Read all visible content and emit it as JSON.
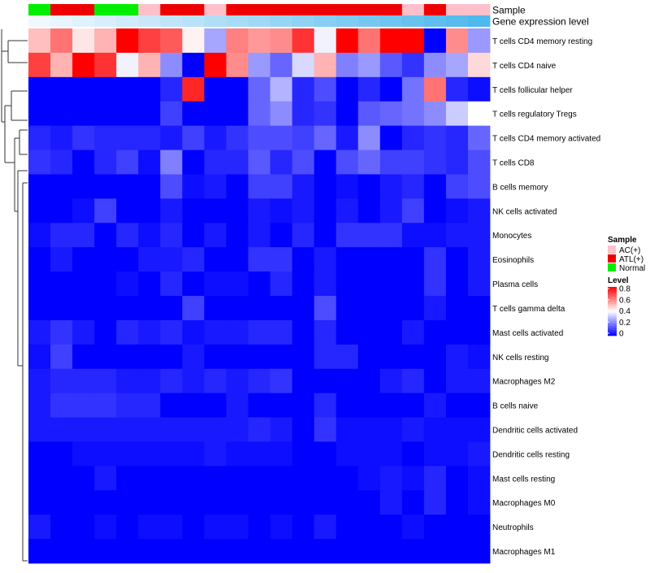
{
  "chart_data": {
    "type": "heatmap",
    "annotation_tracks": [
      {
        "name": "Sample",
        "values": [
          "Normal",
          "ATL(+)",
          "ATL(+)",
          "Normal",
          "Normal",
          "AC(+)",
          "ATL(+)",
          "ATL(+)",
          "AC(+)",
          "ATL(+)",
          "ATL(+)",
          "ATL(+)",
          "ATL(+)",
          "ATL(+)",
          "ATL(+)",
          "ATL(+)",
          "ATL(+)",
          "AC(+)",
          "ATL(+)",
          "AC(+)",
          "AC(+)"
        ]
      },
      {
        "name": "Gene expression level",
        "values": [
          0.0,
          0.05,
          0.1,
          0.15,
          0.2,
          0.25,
          0.3,
          0.35,
          0.4,
          0.45,
          0.5,
          0.55,
          0.6,
          0.65,
          0.7,
          0.75,
          0.8,
          0.85,
          0.9,
          0.95,
          1.0
        ]
      }
    ],
    "rows": [
      "T cells CD4 memory resting",
      "T cells CD4 naive",
      "T cells follicular helper",
      "T cells regulatory  Tregs",
      "T cells CD4 memory activated",
      "T cells CD8",
      "B cells memory",
      "NK cells activated",
      "Monocytes",
      "Eosinophils",
      "Plasma cells",
      "T cells gamma delta",
      "Mast cells activated",
      "NK cells resting",
      "Macrophages M2",
      "B cells naive",
      "Dendritic cells activated",
      "Dendritic cells resting",
      "Mast cells resting",
      "Macrophages M0",
      "Neutrophils",
      "Macrophages M1"
    ],
    "values": [
      [
        0.5,
        0.62,
        0.44,
        0.52,
        0.8,
        0.7,
        0.66,
        0.42,
        0.26,
        0.6,
        0.56,
        0.58,
        0.72,
        0.38,
        0.8,
        0.62,
        0.8,
        0.8,
        0.0,
        0.58,
        0.24
      ],
      [
        0.7,
        0.52,
        0.8,
        0.72,
        0.38,
        0.52,
        0.22,
        0.0,
        0.8,
        0.58,
        0.24,
        0.16,
        0.34,
        0.52,
        0.2,
        0.24,
        0.14,
        0.08,
        0.22,
        0.26,
        0.46
      ],
      [
        0.0,
        0.0,
        0.0,
        0.0,
        0.0,
        0.0,
        0.06,
        0.74,
        0.0,
        0.0,
        0.16,
        0.28,
        0.06,
        0.12,
        0.0,
        0.06,
        0.0,
        0.18,
        0.62,
        0.06,
        0.02
      ],
      [
        0.0,
        0.0,
        0.0,
        0.0,
        0.0,
        0.0,
        0.1,
        0.0,
        0.0,
        0.0,
        0.16,
        0.22,
        0.06,
        0.08,
        0.0,
        0.14,
        0.16,
        0.18,
        0.22,
        0.32,
        0.4
      ],
      [
        0.06,
        0.04,
        0.08,
        0.06,
        0.06,
        0.06,
        0.04,
        0.1,
        0.04,
        0.08,
        0.12,
        0.12,
        0.1,
        0.16,
        0.04,
        0.22,
        0.0,
        0.06,
        0.08,
        0.06,
        0.16
      ],
      [
        0.08,
        0.06,
        0.0,
        0.06,
        0.1,
        0.02,
        0.2,
        0.0,
        0.06,
        0.06,
        0.14,
        0.06,
        0.12,
        0.0,
        0.12,
        0.16,
        0.1,
        0.1,
        0.08,
        0.06,
        0.12
      ],
      [
        0.0,
        0.0,
        0.0,
        0.0,
        0.0,
        0.0,
        0.12,
        0.02,
        0.04,
        0.0,
        0.1,
        0.1,
        0.04,
        0.0,
        0.02,
        0.0,
        0.04,
        0.06,
        0.0,
        0.1,
        0.12
      ],
      [
        0.0,
        0.0,
        0.02,
        0.1,
        0.0,
        0.0,
        0.04,
        0.0,
        0.0,
        0.0,
        0.04,
        0.02,
        0.04,
        0.0,
        0.04,
        0.0,
        0.04,
        0.1,
        0.0,
        0.02,
        0.04
      ],
      [
        0.02,
        0.06,
        0.06,
        0.0,
        0.06,
        0.02,
        0.06,
        0.0,
        0.04,
        0.0,
        0.04,
        0.0,
        0.06,
        0.0,
        0.08,
        0.08,
        0.08,
        0.02,
        0.02,
        0.04,
        0.04
      ],
      [
        0.0,
        0.04,
        0.0,
        0.0,
        0.0,
        0.04,
        0.04,
        0.06,
        0.0,
        0.0,
        0.08,
        0.08,
        0.0,
        0.04,
        0.0,
        0.0,
        0.0,
        0.0,
        0.08,
        0.0,
        0.04
      ],
      [
        0.0,
        0.0,
        0.0,
        0.0,
        0.02,
        0.0,
        0.06,
        0.0,
        0.02,
        0.02,
        0.0,
        0.06,
        0.0,
        0.04,
        0.0,
        0.0,
        0.0,
        0.0,
        0.08,
        0.0,
        0.04
      ],
      [
        0.0,
        0.0,
        0.0,
        0.0,
        0.0,
        0.0,
        0.0,
        0.1,
        0.0,
        0.0,
        0.0,
        0.0,
        0.0,
        0.12,
        0.0,
        0.0,
        0.0,
        0.0,
        0.04,
        0.0,
        0.0
      ],
      [
        0.04,
        0.08,
        0.04,
        0.0,
        0.06,
        0.04,
        0.06,
        0.02,
        0.04,
        0.04,
        0.06,
        0.06,
        0.0,
        0.06,
        0.0,
        0.0,
        0.0,
        0.04,
        0.0,
        0.0,
        0.0
      ],
      [
        0.02,
        0.1,
        0.0,
        0.0,
        0.0,
        0.0,
        0.0,
        0.04,
        0.0,
        0.0,
        0.0,
        0.0,
        0.0,
        0.06,
        0.06,
        0.0,
        0.0,
        0.0,
        0.0,
        0.04,
        0.02
      ],
      [
        0.04,
        0.06,
        0.06,
        0.06,
        0.04,
        0.04,
        0.06,
        0.04,
        0.06,
        0.04,
        0.06,
        0.08,
        0.0,
        0.0,
        0.0,
        0.0,
        0.04,
        0.06,
        0.0,
        0.04,
        0.04
      ],
      [
        0.04,
        0.08,
        0.08,
        0.08,
        0.06,
        0.06,
        0.0,
        0.0,
        0.0,
        0.04,
        0.0,
        0.0,
        0.0,
        0.06,
        0.0,
        0.0,
        0.0,
        0.0,
        0.04,
        0.0,
        0.0
      ],
      [
        0.04,
        0.04,
        0.04,
        0.04,
        0.04,
        0.04,
        0.04,
        0.04,
        0.04,
        0.04,
        0.06,
        0.04,
        0.0,
        0.08,
        0.02,
        0.02,
        0.02,
        0.04,
        0.02,
        0.02,
        0.02
      ],
      [
        0.0,
        0.0,
        0.02,
        0.02,
        0.02,
        0.02,
        0.02,
        0.02,
        0.04,
        0.02,
        0.02,
        0.02,
        0.0,
        0.0,
        0.02,
        0.02,
        0.02,
        0.0,
        0.02,
        0.02,
        0.04
      ],
      [
        0.0,
        0.0,
        0.0,
        0.04,
        0.0,
        0.0,
        0.0,
        0.0,
        0.0,
        0.0,
        0.0,
        0.0,
        0.0,
        0.0,
        0.0,
        0.02,
        0.04,
        0.02,
        0.06,
        0.0,
        0.02
      ],
      [
        0.0,
        0.0,
        0.0,
        0.0,
        0.0,
        0.0,
        0.0,
        0.0,
        0.0,
        0.0,
        0.0,
        0.0,
        0.0,
        0.0,
        0.0,
        0.0,
        0.04,
        0.0,
        0.06,
        0.0,
        0.02
      ],
      [
        0.04,
        0.0,
        0.0,
        0.02,
        0.0,
        0.02,
        0.02,
        0.0,
        0.02,
        0.02,
        0.0,
        0.02,
        0.0,
        0.04,
        0.0,
        0.0,
        0.0,
        0.02,
        0.0,
        0.0,
        0.0
      ],
      [
        0.0,
        0.0,
        0.0,
        0.0,
        0.0,
        0.0,
        0.0,
        0.0,
        0.0,
        0.0,
        0.0,
        0.0,
        0.0,
        0.0,
        0.0,
        0.0,
        0.0,
        0.0,
        0.0,
        0.0,
        0.0
      ]
    ],
    "legend": {
      "sample_title": "Sample",
      "sample_entries": [
        {
          "label": "AC(+)",
          "color": "#ffc0cb"
        },
        {
          "label": "ATL(+)",
          "color": "#ee0000"
        },
        {
          "label": "Normal",
          "color": "#00ee00"
        }
      ],
      "level_title": "Level",
      "level_ticks": [
        "0.8",
        "0.6",
        "0.4",
        "0.2",
        "0"
      ],
      "level_range": [
        0,
        0.8
      ]
    },
    "colors": {
      "low": "#0000ff",
      "mid": "#ffffff",
      "high": "#ff0000",
      "track_low": "#f0f8ff",
      "track_high": "#4fb8ec"
    }
  }
}
